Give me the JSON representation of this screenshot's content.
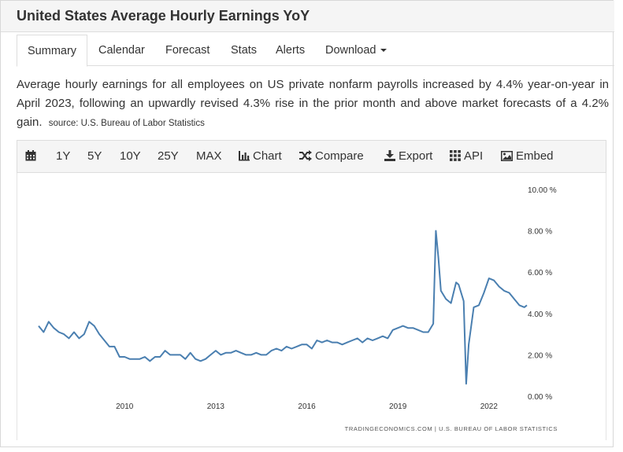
{
  "page": {
    "title": "United States Average Hourly Earnings YoY"
  },
  "tabs": [
    {
      "label": "Summary"
    },
    {
      "label": "Calendar"
    },
    {
      "label": "Forecast"
    },
    {
      "label": "Stats"
    },
    {
      "label": "Alerts"
    },
    {
      "label": "Download"
    }
  ],
  "description": {
    "text": "Average hourly earnings for all employees on US private nonfarm payrolls increased by 4.4% year-on-year in April 2023, following an upwardly revised 4.3% rise in the prior month and above market forecasts of a 4.2% gain.",
    "source": "source: U.S. Bureau of Labor Statistics"
  },
  "toolbar": {
    "calendar_icon": "calendar-icon",
    "ranges": [
      "1Y",
      "5Y",
      "10Y",
      "25Y",
      "MAX"
    ],
    "chart_label": "Chart",
    "compare_label": "Compare",
    "export_label": "Export",
    "api_label": "API",
    "embed_label": "Embed"
  },
  "chart_data": {
    "type": "line",
    "title": "",
    "xlabel": "",
    "ylabel": "",
    "x_tick_labels": [
      "2010",
      "2013",
      "2016",
      "2019",
      "2022"
    ],
    "y_tick_labels": [
      "10.00 %",
      "8.00 %",
      "6.00 %",
      "4.00 %",
      "2.00 %",
      "0.00 %"
    ],
    "ylim": [
      0,
      10
    ],
    "xlim": [
      "2007-03",
      "2023-04"
    ],
    "grid": false,
    "line_color": "#4a7fb0",
    "credit": "TRADINGECONOMICS.COM | U.S. BUREAU OF LABOR STATISTICS",
    "series": [
      {
        "x": [
          "2007-03",
          "2007-05",
          "2007-07",
          "2007-09",
          "2007-11",
          "2008-01",
          "2008-03",
          "2008-05",
          "2008-07",
          "2008-09",
          "2008-11",
          "2009-01",
          "2009-03",
          "2009-05",
          "2009-07",
          "2009-09",
          "2009-11",
          "2010-01",
          "2010-03",
          "2010-05",
          "2010-07",
          "2010-09",
          "2010-11",
          "2011-01",
          "2011-03",
          "2011-05",
          "2011-07",
          "2011-09",
          "2011-11",
          "2012-01",
          "2012-03",
          "2012-05",
          "2012-07",
          "2012-09",
          "2012-11",
          "2013-01",
          "2013-03",
          "2013-05",
          "2013-07",
          "2013-09",
          "2013-11",
          "2014-01",
          "2014-03",
          "2014-05",
          "2014-07",
          "2014-09",
          "2014-11",
          "2015-01",
          "2015-03",
          "2015-05",
          "2015-07",
          "2015-09",
          "2015-11",
          "2016-01",
          "2016-03",
          "2016-05",
          "2016-07",
          "2016-09",
          "2016-11",
          "2017-01",
          "2017-03",
          "2017-05",
          "2017-07",
          "2017-09",
          "2017-11",
          "2018-01",
          "2018-03",
          "2018-05",
          "2018-07",
          "2018-09",
          "2018-11",
          "2019-01",
          "2019-03",
          "2019-05",
          "2019-07",
          "2019-09",
          "2019-11",
          "2020-01",
          "2020-03",
          "2020-04",
          "2020-05",
          "2020-06",
          "2020-08",
          "2020-10",
          "2020-12",
          "2021-01",
          "2021-03",
          "2021-04",
          "2021-05",
          "2021-07",
          "2021-09",
          "2021-11",
          "2022-01",
          "2022-03",
          "2022-05",
          "2022-07",
          "2022-09",
          "2022-11",
          "2023-01",
          "2023-03",
          "2023-04"
        ],
        "values": [
          3.4,
          3.1,
          3.6,
          3.3,
          3.1,
          3.0,
          2.8,
          3.1,
          2.8,
          3.0,
          3.6,
          3.4,
          3.0,
          2.7,
          2.4,
          2.4,
          1.9,
          1.9,
          1.8,
          1.8,
          1.8,
          1.9,
          1.7,
          1.9,
          1.9,
          2.2,
          2.0,
          2.0,
          2.0,
          1.8,
          2.1,
          1.8,
          1.7,
          1.8,
          2.0,
          2.2,
          2.0,
          2.1,
          2.1,
          2.2,
          2.1,
          2.0,
          2.0,
          2.1,
          2.0,
          2.0,
          2.2,
          2.3,
          2.2,
          2.4,
          2.3,
          2.4,
          2.5,
          2.5,
          2.3,
          2.7,
          2.6,
          2.7,
          2.6,
          2.6,
          2.5,
          2.6,
          2.7,
          2.8,
          2.6,
          2.8,
          2.7,
          2.8,
          2.9,
          2.8,
          3.2,
          3.3,
          3.4,
          3.3,
          3.3,
          3.2,
          3.1,
          3.1,
          3.5,
          8.0,
          6.7,
          5.1,
          4.7,
          4.5,
          5.5,
          5.4,
          4.6,
          0.6,
          2.5,
          4.3,
          4.4,
          5.0,
          5.7,
          5.6,
          5.3,
          5.1,
          5.0,
          4.7,
          4.4,
          4.3,
          4.4
        ]
      }
    ]
  }
}
